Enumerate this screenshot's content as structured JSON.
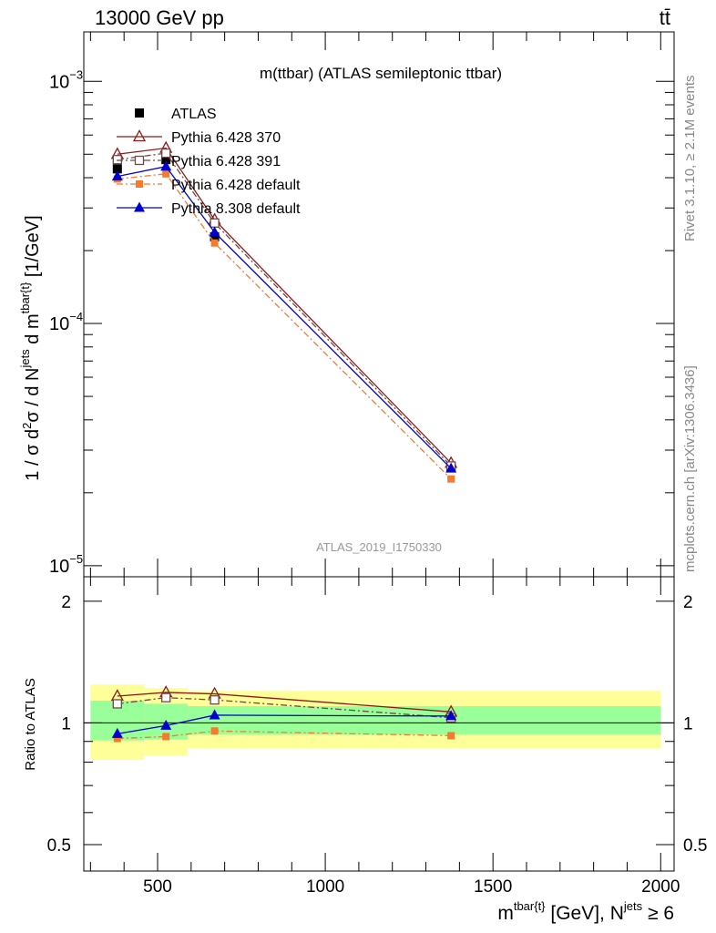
{
  "header": {
    "energy_label": "13000 GeV pp",
    "process_label": "tt̄"
  },
  "side_labels": {
    "rivet": "Rivet 3.1.10, ≥ 2.1M events",
    "source": "mcplots.cern.ch [arXiv:1306.3436]"
  },
  "colors": {
    "atlas": "#000000",
    "pythia6_370": "#8b1a1a",
    "pythia6_391": "#6e4a4a",
    "pythia6_default": "#f47a30",
    "pythia8_default": "#0000d0",
    "band_inner": "#99ff99",
    "band_outer": "#ffff99"
  },
  "chart_data": [
    {
      "type": "line",
      "title": "m(ttbar) (ATLAS semileptonic ttbar)",
      "watermark": "ATLAS_2019_I1750330",
      "ylabel": "1 / σ d²σ / d N^jets d m^tbar{t} [1/GeV]",
      "yscale": "log",
      "ylim": [
        9e-06,
        0.0016
      ],
      "xlim": [
        280,
        2040
      ],
      "ytick_labels": [
        "10^-5",
        "10^-4",
        "10^-3"
      ],
      "x": [
        380,
        525,
        670,
        1375
      ],
      "series": [
        {
          "name": "ATLAS",
          "marker": "filled-square",
          "values": [
            0.000435,
            0.000475,
            0.000228,
            2.55e-05
          ]
        },
        {
          "name": "Pythia 6.428 370",
          "marker": "open-triangle",
          "line": "solid",
          "values": [
            0.0005,
            0.00053,
            0.000268,
            2.65e-05
          ]
        },
        {
          "name": "Pythia 6.428 391",
          "marker": "open-square",
          "line": "dash-dot",
          "values": [
            0.000475,
            0.000505,
            0.00026,
            2.58e-05
          ]
        },
        {
          "name": "Pythia 6.428 default",
          "marker": "filled-square-small",
          "line": "dash-dot",
          "values": [
            0.000395,
            0.000415,
            0.000215,
            2.28e-05
          ]
        },
        {
          "name": "Pythia 8.308 default",
          "marker": "filled-triangle",
          "line": "solid",
          "values": [
            0.000405,
            0.000445,
            0.000238,
            2.52e-05
          ]
        }
      ]
    },
    {
      "type": "line",
      "ylabel": "Ratio to ATLAS",
      "ylim": [
        0.43,
        2.3
      ],
      "yticks": [
        0.5,
        1,
        2
      ],
      "ytick_labels": [
        "0.5",
        "1",
        "2"
      ],
      "xlim": [
        280,
        2040
      ],
      "xticks": [
        500,
        1000,
        1500,
        2000
      ],
      "xtick_labels": [
        "500",
        "1000",
        "1500",
        "2000"
      ],
      "xlabel": "m^tbar{t} [GeV], N^jets ≥ 6",
      "x": [
        380,
        525,
        670,
        1375
      ],
      "reference": 1,
      "bins": [
        [
          300,
          460
        ],
        [
          460,
          590
        ],
        [
          590,
          1400
        ],
        [
          1400,
          2000
        ]
      ],
      "band_inner": [
        [
          0.905,
          1.135
        ],
        [
          0.91,
          1.115
        ],
        [
          0.935,
          1.1
        ],
        [
          0.935,
          1.1
        ]
      ],
      "band_outer": [
        [
          0.81,
          1.245
        ],
        [
          0.83,
          1.22
        ],
        [
          0.865,
          1.2
        ],
        [
          0.865,
          1.2
        ]
      ],
      "series": [
        {
          "name": "Pythia 6.428 370",
          "values": [
            1.165,
            1.19,
            1.18,
            1.065
          ]
        },
        {
          "name": "Pythia 6.428 391",
          "values": [
            1.115,
            1.155,
            1.14,
            1.03
          ]
        },
        {
          "name": "Pythia 6.428 default",
          "values": [
            0.915,
            0.925,
            0.955,
            0.93
          ]
        },
        {
          "name": "Pythia 8.308 default",
          "values": [
            0.94,
            0.985,
            1.045,
            1.04
          ]
        }
      ]
    }
  ]
}
